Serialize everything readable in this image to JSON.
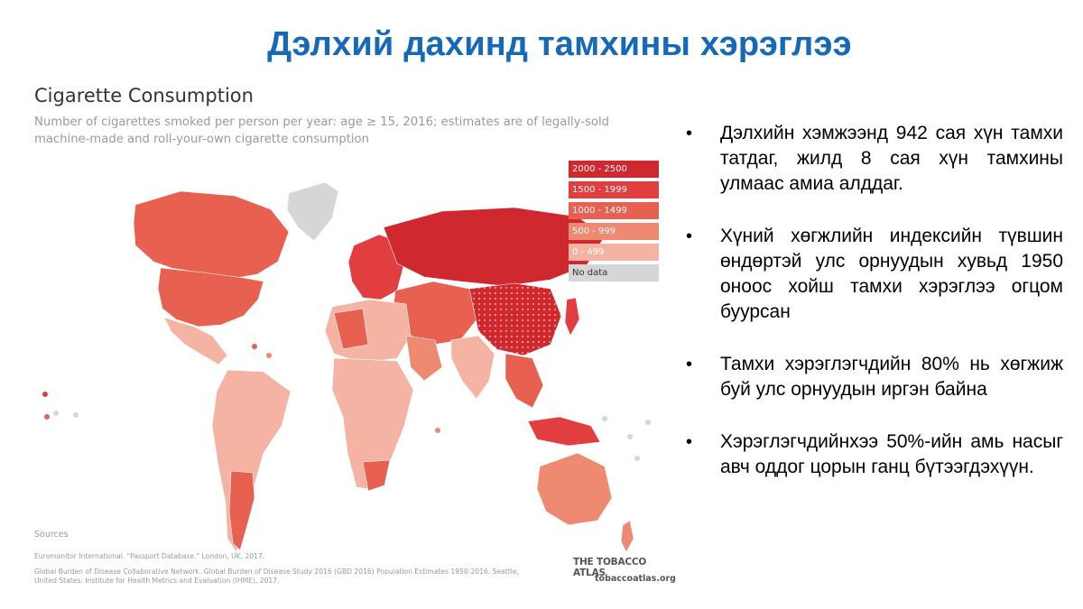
{
  "slide": {
    "title": "Дэлхий дахинд тамхины хэрэглээ"
  },
  "chart": {
    "title": "Cigarette Consumption",
    "subtitle": "Number of cigarettes smoked per person per year: age ≥ 15, 2016; estimates are of legally-sold machine-made and roll-your-own cigarette consumption",
    "legend": [
      {
        "label": "2000 - 2500",
        "color": "#d0282f"
      },
      {
        "label": "1500 - 1999",
        "color": "#e23d3f"
      },
      {
        "label": "1000 - 1499",
        "color": "#e8604f"
      },
      {
        "label": "500 - 999",
        "color": "#ee8a72"
      },
      {
        "label": "0 - 499",
        "color": "#f4b3a3"
      },
      {
        "label": "No data",
        "color": "#d6d6d6"
      }
    ],
    "sources_label": "Sources",
    "sources": [
      "Euromonitor International. \"Passport Database.\" London, UK, 2017.",
      "Global Burden of Disease Collaborative Network. Global Burden of Disease Study 2016 (GBD 2016) Population Estimates 1950-2016. Seattle, United States: Institute for Health Metrics and Evaluation (IHME), 2017."
    ],
    "brand": "THE TOBACCO ATLAS",
    "url": "tobaccoatlas.org"
  },
  "bullets": [
    "Дэлхийн хэмжээнд 942 сая хүн тамхи татдаг, жилд 8 сая хүн тамхины улмаас амиа алддаг.",
    "Хүний хөгжлийн индексийн түвшин өндөртэй улс орнуудын хувьд 1950 оноос хойш тамхи хэрэглээ огцом буурсан",
    "Тамхи хэрэглэгчдийн 80% нь хөгжиж буй улс орнуудын иргэн байна",
    "Хэрэглэгчдийнхээ 50%-ийн амь насыг авч оддог цорын ганц бүтээгдэхүүн."
  ],
  "bullet_symbol": "•"
}
